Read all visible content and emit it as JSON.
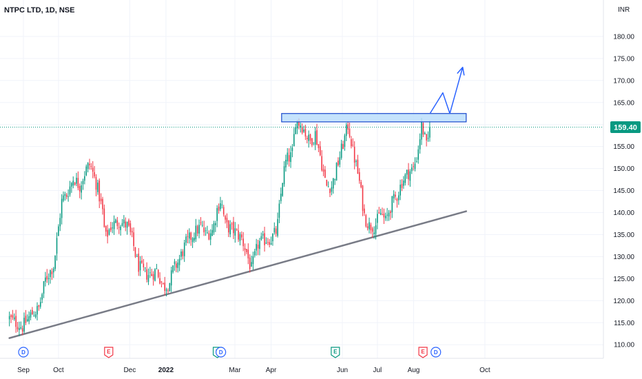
{
  "header": {
    "symbol_title": "NTPC LTD, 1D, NSE"
  },
  "currency_label": "INR",
  "last_price_label": "159.40",
  "colors": {
    "up": "#089981",
    "down": "#f23645",
    "grid": "#f0f3fa",
    "trendline": "#787b86",
    "resistance_fill": "#bbdefb",
    "resistance_border": "#1848cc",
    "arrow": "#2962ff",
    "last_price_line": "#089981",
    "event_dividend": "#2962ff",
    "event_earnings_past": "#f23645",
    "event_earnings_upcoming": "#089981"
  },
  "chart_data": {
    "type": "candlestick",
    "title": "NTPC LTD, 1D, NSE",
    "ylabel": "INR",
    "ylim": [
      107,
      185
    ],
    "y_ticks": [
      "110.00",
      "115.00",
      "120.00",
      "125.00",
      "130.00",
      "135.00",
      "140.00",
      "145.00",
      "150.00",
      "155.00",
      "160.00",
      "165.00",
      "170.00",
      "175.00",
      "180.00"
    ],
    "x_ticks": [
      {
        "label": "Sep",
        "date": "2021-09-01"
      },
      {
        "label": "Oct",
        "date": "2021-10-01"
      },
      {
        "label": "Dec",
        "date": "2021-12-01"
      },
      {
        "label": "2022",
        "date": "2022-01-01",
        "bold": true
      },
      {
        "label": "Mar",
        "date": "2022-03-01"
      },
      {
        "label": "Apr",
        "date": "2022-04-01"
      },
      {
        "label": "Jun",
        "date": "2022-06-01"
      },
      {
        "label": "Jul",
        "date": "2022-07-01"
      },
      {
        "label": "Aug",
        "date": "2022-08-01"
      },
      {
        "label": "Oct",
        "date": "2022-10-01"
      }
    ],
    "last_price": 159.4,
    "price_path": [
      [
        "2021-08-20",
        116
      ],
      [
        "2021-08-31",
        114
      ],
      [
        "2021-09-08",
        117
      ],
      [
        "2021-09-14",
        118
      ],
      [
        "2021-09-20",
        125
      ],
      [
        "2021-09-27",
        128
      ],
      [
        "2021-10-04",
        143
      ],
      [
        "2021-10-08",
        144
      ],
      [
        "2021-10-14",
        148
      ],
      [
        "2021-10-19",
        146
      ],
      [
        "2021-10-25",
        150
      ],
      [
        "2021-10-28",
        151
      ],
      [
        "2021-11-03",
        146
      ],
      [
        "2021-11-08",
        140
      ],
      [
        "2021-11-10",
        134
      ],
      [
        "2021-11-15",
        137
      ],
      [
        "2021-11-22",
        138
      ],
      [
        "2021-11-29",
        137
      ],
      [
        "2021-12-03",
        134
      ],
      [
        "2021-12-08",
        128
      ],
      [
        "2021-12-15",
        126
      ],
      [
        "2021-12-20",
        126
      ],
      [
        "2021-12-24",
        127
      ],
      [
        "2021-12-30",
        123
      ],
      [
        "2022-01-04",
        124
      ],
      [
        "2022-01-07",
        127
      ],
      [
        "2022-01-12",
        129
      ],
      [
        "2022-01-18",
        133
      ],
      [
        "2022-01-24",
        135
      ],
      [
        "2022-01-31",
        137
      ],
      [
        "2022-02-04",
        135
      ],
      [
        "2022-02-10",
        136
      ],
      [
        "2022-02-14",
        141
      ],
      [
        "2022-02-17",
        143
      ],
      [
        "2022-02-21",
        137
      ],
      [
        "2022-02-28",
        136
      ],
      [
        "2022-03-07",
        134
      ],
      [
        "2022-03-11",
        131
      ],
      [
        "2022-03-15",
        127
      ],
      [
        "2022-03-21",
        133
      ],
      [
        "2022-03-28",
        134
      ],
      [
        "2022-04-01",
        134
      ],
      [
        "2022-04-06",
        136
      ],
      [
        "2022-04-11",
        148
      ],
      [
        "2022-04-14",
        152
      ],
      [
        "2022-04-19",
        153
      ],
      [
        "2022-04-22",
        161
      ],
      [
        "2022-04-27",
        160
      ],
      [
        "2022-05-04",
        156
      ],
      [
        "2022-05-09",
        158
      ],
      [
        "2022-05-13",
        153
      ],
      [
        "2022-05-18",
        146
      ],
      [
        "2022-05-23",
        146
      ],
      [
        "2022-05-27",
        150
      ],
      [
        "2022-06-01",
        155
      ],
      [
        "2022-06-06",
        160
      ],
      [
        "2022-06-10",
        154
      ],
      [
        "2022-06-15",
        148
      ],
      [
        "2022-06-20",
        139
      ],
      [
        "2022-06-24",
        137
      ],
      [
        "2022-06-29",
        137
      ],
      [
        "2022-07-04",
        140
      ],
      [
        "2022-07-08",
        138
      ],
      [
        "2022-07-13",
        142
      ],
      [
        "2022-07-18",
        144
      ],
      [
        "2022-07-22",
        147
      ],
      [
        "2022-07-27",
        149
      ],
      [
        "2022-08-01",
        150
      ],
      [
        "2022-08-04",
        153
      ],
      [
        "2022-08-08",
        160
      ],
      [
        "2022-08-12",
        155
      ],
      [
        "2022-08-16",
        159.4
      ]
    ],
    "annotations": {
      "resistance_zone": {
        "x_start": "2022-04-10",
        "x_end": "2022-09-15",
        "y_low": 160.6,
        "y_high": 162.5
      },
      "ascending_trendline": [
        [
          "2021-08-20",
          111.5
        ],
        [
          "2022-09-15",
          140.3
        ]
      ],
      "projected_path": [
        [
          "2022-08-15",
          162.5
        ],
        [
          "2022-08-26",
          167.2
        ],
        [
          "2022-09-01",
          162.5
        ],
        [
          "2022-09-12",
          173.0
        ]
      ]
    },
    "events": [
      {
        "type": "dividend",
        "label": "D",
        "date": "2021-09-01"
      },
      {
        "type": "earnings",
        "label": "E",
        "date": "2021-11-13"
      },
      {
        "type": "earnings",
        "label": "E",
        "date": "2022-02-14"
      },
      {
        "type": "dividend",
        "label": "D",
        "date": "2022-02-17"
      },
      {
        "type": "earnings",
        "label": "E",
        "date": "2022-05-26"
      },
      {
        "type": "earnings",
        "label": "E",
        "date": "2022-08-09"
      },
      {
        "type": "dividend",
        "label": "D",
        "date": "2022-08-20"
      }
    ]
  }
}
